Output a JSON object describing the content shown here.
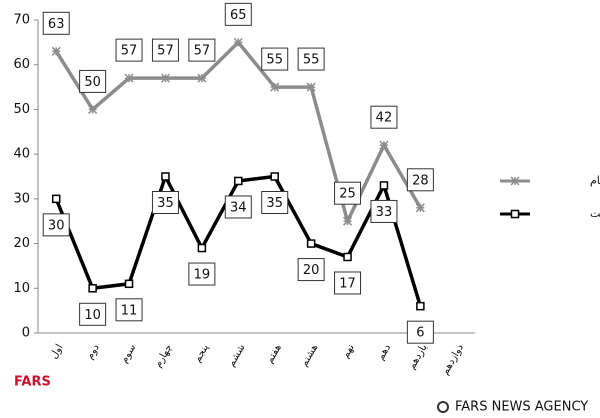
{
  "chart_data": {
    "type": "line",
    "categories": [
      "اول",
      "دوم",
      "سوم",
      "چهارم",
      "پنجم",
      "ششم",
      "هفتم",
      "هشتم",
      "نهم",
      "دهم",
      "یازدهم",
      "دوازدهم"
    ],
    "series": [
      {
        "name": "سن امام",
        "color": "#8c8c8c",
        "values": [
          63,
          50,
          57,
          57,
          57,
          65,
          55,
          55,
          25,
          42,
          28,
          null
        ]
      },
      {
        "name": "مدت امامت",
        "color": "#000000",
        "values": [
          30,
          10,
          11,
          35,
          19,
          34,
          35,
          20,
          17,
          33,
          6,
          null
        ]
      }
    ],
    "ylim": [
      0,
      70
    ],
    "yticks": [
      0,
      10,
      20,
      30,
      40,
      50,
      60,
      70
    ],
    "grid": false,
    "legend": "right"
  },
  "footer": {
    "left": "FARS",
    "right": "FARS NEWS AGENCY"
  }
}
